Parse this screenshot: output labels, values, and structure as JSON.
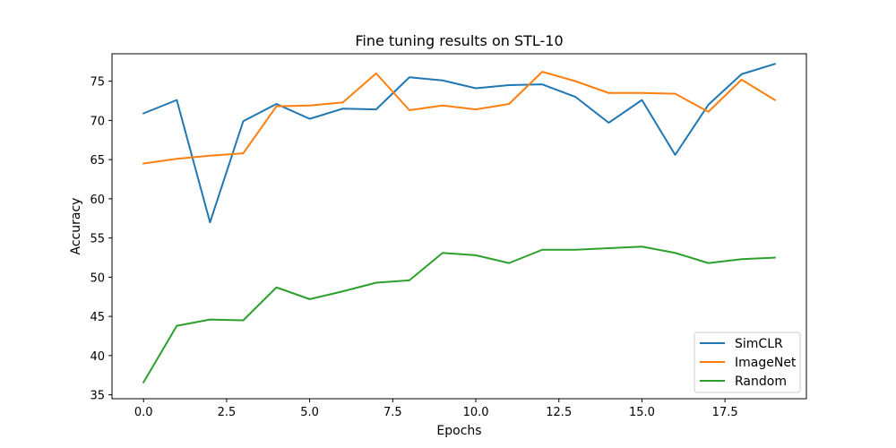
{
  "chart_data": {
    "type": "line",
    "title": "Fine tuning results on STL-10",
    "xlabel": "Epochs",
    "ylabel": "Accuracy",
    "xlim": [
      -0.95,
      19.95
    ],
    "ylim": [
      34.5,
      78.5
    ],
    "x": [
      0,
      1,
      2,
      3,
      4,
      5,
      6,
      7,
      8,
      9,
      10,
      11,
      12,
      13,
      14,
      15,
      16,
      17,
      18,
      19
    ],
    "x_ticks": [
      0.0,
      2.5,
      5.0,
      7.5,
      10.0,
      12.5,
      15.0,
      17.5
    ],
    "x_tick_labels": [
      "0.0",
      "2.5",
      "5.0",
      "7.5",
      "10.0",
      "12.5",
      "15.0",
      "17.5"
    ],
    "y_ticks": [
      35,
      40,
      45,
      50,
      55,
      60,
      65,
      70,
      75
    ],
    "y_tick_labels": [
      "35",
      "40",
      "45",
      "50",
      "55",
      "60",
      "65",
      "70",
      "75"
    ],
    "grid": false,
    "legend_position": "bottom-right",
    "series": [
      {
        "name": "SimCLR",
        "color": "#1f77b4",
        "values": [
          70.9,
          72.6,
          57.0,
          69.9,
          72.1,
          70.2,
          71.5,
          71.4,
          75.5,
          75.1,
          74.1,
          74.5,
          74.6,
          73.0,
          69.7,
          72.6,
          65.6,
          72.0,
          75.9,
          77.2
        ]
      },
      {
        "name": "ImageNet",
        "color": "#ff7f0e",
        "values": [
          64.5,
          65.1,
          65.5,
          65.8,
          71.8,
          71.9,
          72.3,
          76.0,
          71.3,
          71.9,
          71.4,
          72.1,
          76.2,
          75.0,
          73.5,
          73.5,
          73.4,
          71.1,
          75.2,
          72.6
        ]
      },
      {
        "name": "Random",
        "color": "#2ca02c",
        "values": [
          36.6,
          43.8,
          44.6,
          44.5,
          48.7,
          47.2,
          48.2,
          49.3,
          49.6,
          53.1,
          52.8,
          51.8,
          53.5,
          53.5,
          53.7,
          53.9,
          53.1,
          51.8,
          52.3,
          52.5
        ]
      }
    ]
  }
}
